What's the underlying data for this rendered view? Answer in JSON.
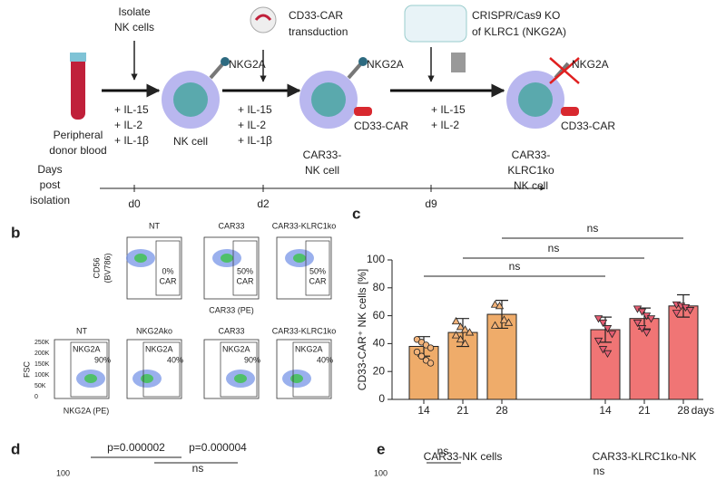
{
  "panel_a": {
    "isolate": [
      "Isolate",
      "NK cells"
    ],
    "transduction": [
      "CD33-CAR",
      "transduction"
    ],
    "crispr": [
      "CRISPR/Cas9 KO",
      "of KLRC1 (NKG2A)"
    ],
    "blood": [
      "Peripheral",
      "donor blood"
    ],
    "cytokines1": [
      "+ IL-15",
      "+ IL-2",
      "+ IL-1β"
    ],
    "cytokines2": [
      "+ IL-15",
      "+ IL-2",
      "+ IL-1β"
    ],
    "cytokines3": [
      "+ IL-15",
      "+ IL-2"
    ],
    "receptor": "NKG2A",
    "car": "CD33-CAR",
    "cells": [
      [
        "NK cell"
      ],
      [
        "CAR33-",
        "NK cell"
      ],
      [
        "CAR33-",
        "KLRC1ko",
        "NK cell"
      ]
    ],
    "days": [
      "Days",
      "post",
      "isolation"
    ],
    "timepoints": [
      "d0",
      "d2",
      "d9"
    ]
  },
  "panel_b": {
    "label": "b",
    "top_titles": [
      "NT",
      "CAR33",
      "CAR33-KLRC1ko"
    ],
    "top_gates": [
      "0%",
      "50%",
      "50%"
    ],
    "gate_name": "CAR",
    "top_ylabel": [
      "CD56",
      "(BV786)"
    ],
    "top_xlabel": "CAR33 (PE)",
    "bottom_titles": [
      "NT",
      "NKG2Ako",
      "CAR33",
      "CAR33-KLRC1ko"
    ],
    "bottom_gate": "NKG2A",
    "bottom_pct": [
      "90%",
      "40%",
      "90%",
      "40%"
    ],
    "bottom_ylabel": "FSC",
    "bottom_xlabel": "NKG2A (PE)",
    "fsc_ticks": [
      "250K",
      "200K",
      "150K",
      "100K",
      "50K",
      "0"
    ]
  },
  "chart_data": {
    "type": "bar",
    "label": "c",
    "ylabel": "CD33-CAR⁺ NK cells [%]",
    "xlabel": "days",
    "ylim": [
      0,
      100
    ],
    "yticks": [
      0,
      20,
      40,
      60,
      80,
      100
    ],
    "significance": [
      "ns",
      "ns",
      "ns"
    ],
    "series": [
      {
        "name": "CAR33-NK cells",
        "color": "#efac6a",
        "categories": [
          "14",
          "21",
          "28"
        ],
        "values": [
          38,
          48,
          61
        ],
        "errors": [
          7,
          10,
          10
        ],
        "points": [
          [
            43,
            41,
            39,
            37,
            34,
            31,
            28,
            26
          ],
          [
            56,
            52,
            50,
            48,
            46,
            43,
            40
          ],
          [
            68,
            67,
            57,
            55,
            53
          ]
        ]
      },
      {
        "name": "CAR33-KLRC1ko-NK",
        "color": "#f07575",
        "categories": [
          "14",
          "21",
          "28"
        ],
        "values": [
          50,
          58,
          67
        ],
        "errors": [
          9,
          7.5,
          8
        ],
        "points": [
          [
            58,
            55,
            51,
            47,
            42,
            36,
            33
          ],
          [
            65,
            63,
            60,
            58,
            55,
            51,
            48
          ],
          [
            68,
            67,
            66,
            64,
            62
          ]
        ]
      }
    ]
  },
  "panel_d": {
    "label": "d",
    "pvalues": [
      "p=0.000002",
      "p=0.000004"
    ],
    "ns": "ns",
    "ytop": "100"
  },
  "panel_e": {
    "label": "e",
    "ns": [
      "ns",
      "ns"
    ],
    "ytop": "100"
  }
}
